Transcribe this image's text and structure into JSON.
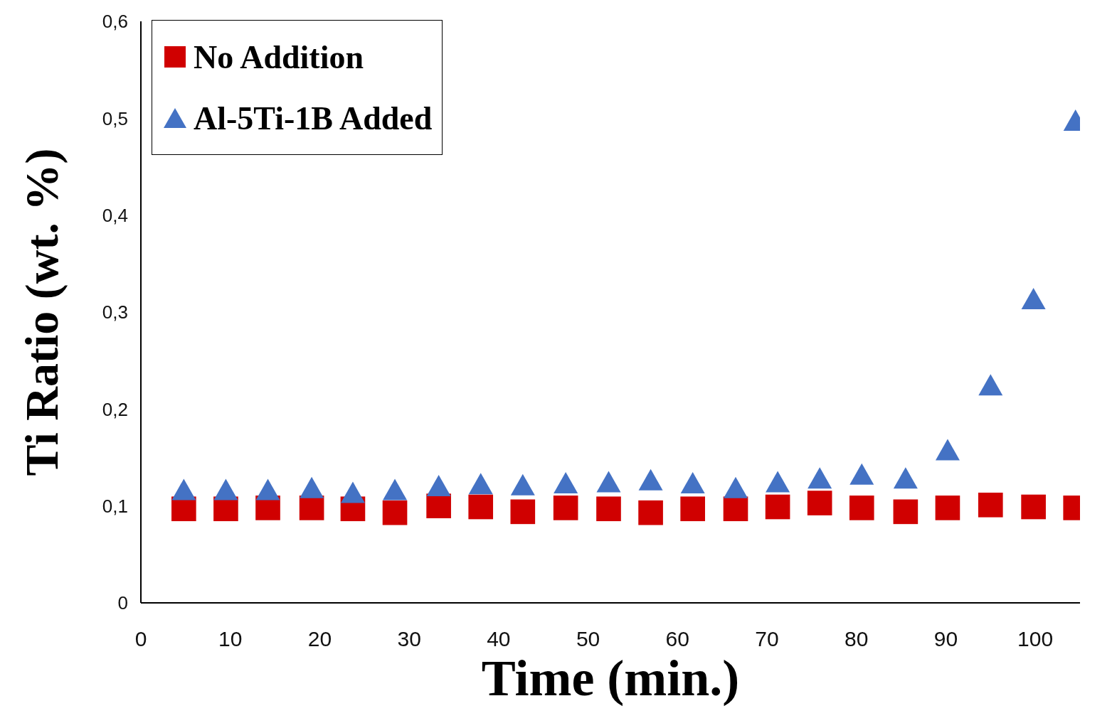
{
  "chart_data": {
    "type": "scatter",
    "xlabel": "Time (min.)",
    "ylabel": "Ti Ratio (wt. %)",
    "x": [
      4.8,
      9.5,
      14.2,
      19.1,
      23.7,
      28.4,
      33.3,
      38.0,
      42.7,
      47.5,
      52.3,
      57.0,
      61.7,
      66.5,
      71.2,
      75.9,
      80.6,
      85.5,
      90.2,
      95.0,
      99.8,
      104.5
    ],
    "series": [
      {
        "name": "No Addition",
        "color": "#d00000",
        "marker": "square",
        "values": [
          0.097,
          0.097,
          0.098,
          0.098,
          0.097,
          0.093,
          0.1,
          0.099,
          0.094,
          0.098,
          0.097,
          0.093,
          0.097,
          0.097,
          0.099,
          0.103,
          0.098,
          0.094,
          0.098,
          0.101,
          0.099,
          0.098
        ]
      },
      {
        "name": "Al-5Ti-1B Added",
        "color": "#4472c4",
        "marker": "triangle",
        "values": [
          0.117,
          0.117,
          0.117,
          0.119,
          0.114,
          0.117,
          0.121,
          0.123,
          0.122,
          0.124,
          0.125,
          0.127,
          0.124,
          0.119,
          0.125,
          0.129,
          0.133,
          0.129,
          0.158,
          0.225,
          0.314,
          0.498
        ]
      }
    ],
    "xlim": [
      0,
      105
    ],
    "xticks": [
      0,
      10,
      20,
      30,
      40,
      50,
      60,
      70,
      80,
      90,
      100
    ],
    "ylim": [
      0,
      0.6
    ],
    "yticks": [
      0,
      {
        "value": 0.1,
        "label": "0,1"
      },
      {
        "value": 0.2,
        "label": "0,2"
      },
      {
        "value": 0.3,
        "label": "0,3"
      },
      {
        "value": 0.4,
        "label": "0,4"
      },
      {
        "value": 0.5,
        "label": "0,5"
      },
      {
        "value": 0.6,
        "label": "0,6"
      }
    ],
    "grid": false,
    "legend": "top left"
  }
}
